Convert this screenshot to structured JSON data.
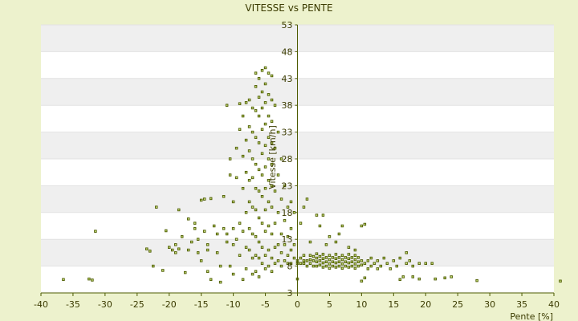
{
  "chart_data": {
    "type": "scatter",
    "title": "VITESSE vs PENTE",
    "xlabel": "Pente [%]",
    "ylabel": "Vitesse [km/h]",
    "xlim": [
      -40,
      40
    ],
    "ylim": [
      3,
      53
    ],
    "x_ticks": [
      "-40",
      "-35",
      "-30",
      "-25",
      "-20",
      "-15",
      "-10",
      "-5",
      "0",
      "5",
      "10",
      "15",
      "20",
      "25",
      "30",
      "35",
      "40"
    ],
    "y_ticks": [
      "3",
      "8",
      "13",
      "18",
      "23",
      "28",
      "33",
      "38",
      "43",
      "48",
      "53"
    ],
    "grid": true,
    "legend": "none",
    "colors": {
      "background": "#edf2cd",
      "plot_white": "#ffffff",
      "plot_band": "#efefef",
      "marker_fill": "#c8e07a",
      "marker_edge": "#4c5a00",
      "axis": "#4c5a00"
    },
    "points": [
      [
        -36.5,
        5.5
      ],
      [
        -32.5,
        5.6
      ],
      [
        -32,
        5.4
      ],
      [
        -31.5,
        14.5
      ],
      [
        -23.5,
        11.2
      ],
      [
        -23,
        10.8
      ],
      [
        -22.5,
        8.0
      ],
      [
        -22,
        19.0
      ],
      [
        -21,
        7.2
      ],
      [
        -20.5,
        14.6
      ],
      [
        -20,
        11.5
      ],
      [
        -19.5,
        11.0
      ],
      [
        -19,
        10.5
      ],
      [
        -19,
        12.0
      ],
      [
        -18.5,
        18.5
      ],
      [
        -18.5,
        11.2
      ],
      [
        -18,
        13.5
      ],
      [
        -17.5,
        6.8
      ],
      [
        -17,
        11.0
      ],
      [
        -17,
        16.8
      ],
      [
        -16.5,
        12.5
      ],
      [
        -16,
        15.0
      ],
      [
        -16,
        16.0
      ],
      [
        -15.5,
        10.5
      ],
      [
        -15.5,
        13.0
      ],
      [
        -15,
        20.3
      ],
      [
        -15,
        9.0
      ],
      [
        -14.5,
        20.5
      ],
      [
        -14.5,
        14.5
      ],
      [
        -14,
        12.0
      ],
      [
        -14,
        7.0
      ],
      [
        -14,
        11.0
      ],
      [
        -13.5,
        20.6
      ],
      [
        -13.5,
        5.5
      ],
      [
        -13,
        15.5
      ],
      [
        -12.5,
        14.0
      ],
      [
        -12.5,
        10.5
      ],
      [
        -12,
        5.0
      ],
      [
        -12,
        8.0
      ],
      [
        -11.5,
        15.0
      ],
      [
        -11.5,
        21.0
      ],
      [
        -11,
        12.5
      ],
      [
        -11,
        14.0
      ],
      [
        -11,
        38.0
      ],
      [
        -10.5,
        8.0
      ],
      [
        -10.5,
        25.0
      ],
      [
        -10.5,
        28.0
      ],
      [
        -10,
        15.0
      ],
      [
        -10,
        12.0
      ],
      [
        -10,
        20.0
      ],
      [
        -10,
        6.5
      ],
      [
        -9.5,
        30.0
      ],
      [
        -9.5,
        24.5
      ],
      [
        -9.5,
        13.0
      ],
      [
        -9,
        38.3
      ],
      [
        -9,
        33.5
      ],
      [
        -9,
        16.0
      ],
      [
        -9,
        10.0
      ],
      [
        -8.5,
        36.0
      ],
      [
        -8.5,
        28.5
      ],
      [
        -8.5,
        22.5
      ],
      [
        -8.5,
        14.5
      ],
      [
        -8.5,
        5.5
      ],
      [
        -8,
        38.5
      ],
      [
        -8,
        31.5
      ],
      [
        -8,
        25.5
      ],
      [
        -8,
        18.0
      ],
      [
        -8,
        11.5
      ],
      [
        -8,
        7.5
      ],
      [
        -7.5,
        39.0
      ],
      [
        -7.5,
        34.0
      ],
      [
        -7.5,
        29.5
      ],
      [
        -7.5,
        24.0
      ],
      [
        -7.5,
        20.0
      ],
      [
        -7.5,
        15.0
      ],
      [
        -7.5,
        11.0
      ],
      [
        -7,
        37.5
      ],
      [
        -7,
        33.0
      ],
      [
        -7,
        28.0
      ],
      [
        -7,
        24.5
      ],
      [
        -7,
        19.0
      ],
      [
        -7,
        14.0
      ],
      [
        -7,
        9.5
      ],
      [
        -7,
        6.5
      ],
      [
        -6.5,
        44.0
      ],
      [
        -6.5,
        41.5
      ],
      [
        -6.5,
        37.0
      ],
      [
        -6.5,
        32.0
      ],
      [
        -6.5,
        27.0
      ],
      [
        -6.5,
        22.5
      ],
      [
        -6.5,
        18.5
      ],
      [
        -6.5,
        13.5
      ],
      [
        -6.5,
        10.0
      ],
      [
        -6.5,
        7.0
      ],
      [
        -6,
        43.0
      ],
      [
        -6,
        39.5
      ],
      [
        -6,
        36.0
      ],
      [
        -6,
        31.0
      ],
      [
        -6,
        26.0
      ],
      [
        -6,
        22.0
      ],
      [
        -6,
        17.0
      ],
      [
        -6,
        12.5
      ],
      [
        -6,
        9.5
      ],
      [
        -6,
        6.0
      ],
      [
        -5.5,
        44.5
      ],
      [
        -5.5,
        40.5
      ],
      [
        -5.5,
        37.5
      ],
      [
        -5.5,
        33.5
      ],
      [
        -5.5,
        29.0
      ],
      [
        -5.5,
        25.0
      ],
      [
        -5.5,
        21.0
      ],
      [
        -5.5,
        16.0
      ],
      [
        -5.5,
        11.5
      ],
      [
        -5.5,
        8.5
      ],
      [
        -5,
        45.0
      ],
      [
        -5,
        42.0
      ],
      [
        -5,
        38.5
      ],
      [
        -5,
        34.5
      ],
      [
        -5,
        30.5
      ],
      [
        -5,
        26.5
      ],
      [
        -5,
        22.5
      ],
      [
        -5,
        18.5
      ],
      [
        -5,
        14.5
      ],
      [
        -5,
        10.0
      ],
      [
        -5,
        7.5
      ],
      [
        -4.5,
        44.0
      ],
      [
        -4.5,
        40.0
      ],
      [
        -4.5,
        36.0
      ],
      [
        -4.5,
        32.0
      ],
      [
        -4.5,
        28.0
      ],
      [
        -4.5,
        24.0
      ],
      [
        -4.5,
        20.0
      ],
      [
        -4.5,
        15.5
      ],
      [
        -4.5,
        11.0
      ],
      [
        -4.5,
        8.0
      ],
      [
        -4,
        43.5
      ],
      [
        -4,
        39.0
      ],
      [
        -4,
        35.0
      ],
      [
        -4,
        31.0
      ],
      [
        -4,
        27.0
      ],
      [
        -4,
        23.0
      ],
      [
        -4,
        19.0
      ],
      [
        -4,
        14.0
      ],
      [
        -4,
        9.5
      ],
      [
        -4,
        7.0
      ],
      [
        -3.5,
        38.0
      ],
      [
        -3.5,
        30.0
      ],
      [
        -3.5,
        22.0
      ],
      [
        -3.5,
        16.0
      ],
      [
        -3.5,
        11.5
      ],
      [
        -3.5,
        8.5
      ],
      [
        -3,
        33.0
      ],
      [
        -3,
        25.0
      ],
      [
        -3,
        18.0
      ],
      [
        -3,
        12.0
      ],
      [
        -3,
        9.0
      ],
      [
        -2.5,
        28.0
      ],
      [
        -2.5,
        20.5
      ],
      [
        -2.5,
        14.0
      ],
      [
        -2.5,
        10.5
      ],
      [
        -2.5,
        8.0
      ],
      [
        -2,
        23.0
      ],
      [
        -2,
        16.5
      ],
      [
        -2,
        12.0
      ],
      [
        -2,
        9.0
      ],
      [
        -1.5,
        19.0
      ],
      [
        -1.5,
        13.5
      ],
      [
        -1.5,
        10.0
      ],
      [
        -1.5,
        8.5
      ],
      [
        -1,
        20.0
      ],
      [
        -1,
        15.0
      ],
      [
        -1,
        11.0
      ],
      [
        -1,
        8.5
      ],
      [
        -0.5,
        18.0
      ],
      [
        -0.5,
        12.0
      ],
      [
        -0.5,
        9.5
      ],
      [
        0,
        5.6
      ],
      [
        0,
        8.5
      ],
      [
        0,
        9.0
      ],
      [
        0.5,
        8.5
      ],
      [
        0.5,
        9.5
      ],
      [
        0.5,
        16.0
      ],
      [
        1,
        8.5
      ],
      [
        1,
        9.0
      ],
      [
        1,
        10.0
      ],
      [
        1,
        19.0
      ],
      [
        1.5,
        8.0
      ],
      [
        1.5,
        9.0
      ],
      [
        1.5,
        20.5
      ],
      [
        2,
        8.5
      ],
      [
        2,
        9.2
      ],
      [
        2,
        10.0
      ],
      [
        2,
        12.5
      ],
      [
        2.5,
        8.0
      ],
      [
        2.5,
        9.0
      ],
      [
        2.5,
        9.8
      ],
      [
        3,
        8.0
      ],
      [
        3,
        8.8
      ],
      [
        3,
        9.5
      ],
      [
        3,
        10.3
      ],
      [
        3,
        17.5
      ],
      [
        3.5,
        8.2
      ],
      [
        3.5,
        9.0
      ],
      [
        3.5,
        9.8
      ],
      [
        3.5,
        15.5
      ],
      [
        4,
        7.8
      ],
      [
        4,
        8.6
      ],
      [
        4,
        9.4
      ],
      [
        4,
        10.2
      ],
      [
        4,
        17.5
      ],
      [
        4.5,
        8.0
      ],
      [
        4.5,
        8.8
      ],
      [
        4.5,
        9.6
      ],
      [
        4.5,
        12.0
      ],
      [
        5,
        7.6
      ],
      [
        5,
        8.4
      ],
      [
        5,
        9.2
      ],
      [
        5,
        10.0
      ],
      [
        5,
        13.5
      ],
      [
        5.5,
        8.0
      ],
      [
        5.5,
        8.8
      ],
      [
        5.5,
        9.6
      ],
      [
        6,
        7.8
      ],
      [
        6,
        8.6
      ],
      [
        6,
        9.4
      ],
      [
        6,
        10.2
      ],
      [
        6,
        12.5
      ],
      [
        6.5,
        8.0
      ],
      [
        6.5,
        8.8
      ],
      [
        6.5,
        9.6
      ],
      [
        6.5,
        14.0
      ],
      [
        7,
        7.6
      ],
      [
        7,
        8.4
      ],
      [
        7,
        9.2
      ],
      [
        7,
        10.0
      ],
      [
        7,
        15.5
      ],
      [
        7.5,
        8.0
      ],
      [
        7.5,
        8.8
      ],
      [
        7.5,
        9.6
      ],
      [
        8,
        7.8
      ],
      [
        8,
        8.6
      ],
      [
        8,
        9.4
      ],
      [
        8,
        10.2
      ],
      [
        8,
        11.5
      ],
      [
        8.5,
        8.0
      ],
      [
        8.5,
        8.8
      ],
      [
        8.5,
        9.6
      ],
      [
        9,
        7.6
      ],
      [
        9,
        8.4
      ],
      [
        9,
        9.2
      ],
      [
        9,
        10.0
      ],
      [
        9,
        11.0
      ],
      [
        9.5,
        8.0
      ],
      [
        9.5,
        8.8
      ],
      [
        9.5,
        9.6
      ],
      [
        10,
        5.2
      ],
      [
        10,
        8.2
      ],
      [
        10,
        9.0
      ],
      [
        10,
        15.5
      ],
      [
        10.5,
        5.8
      ],
      [
        10.5,
        8.5
      ],
      [
        10.5,
        15.8
      ],
      [
        11,
        9.0
      ],
      [
        11,
        7.5
      ],
      [
        11.5,
        8.0
      ],
      [
        11.5,
        9.5
      ],
      [
        12,
        8.5
      ],
      [
        12.5,
        7.5
      ],
      [
        12.5,
        9.0
      ],
      [
        13,
        8.0
      ],
      [
        13.5,
        9.5
      ],
      [
        14,
        8.5
      ],
      [
        14.5,
        7.5
      ],
      [
        15,
        9.0
      ],
      [
        15.5,
        8.0
      ],
      [
        16,
        5.5
      ],
      [
        16,
        9.5
      ],
      [
        16.5,
        6.0
      ],
      [
        17,
        8.5
      ],
      [
        17,
        10.5
      ],
      [
        17.5,
        9.0
      ],
      [
        18,
        6.0
      ],
      [
        18,
        8.0
      ],
      [
        19,
        5.6
      ],
      [
        19,
        8.5
      ],
      [
        20,
        8.5
      ],
      [
        21,
        8.5
      ],
      [
        21.5,
        5.6
      ],
      [
        23,
        5.8
      ],
      [
        24,
        6.0
      ],
      [
        28,
        5.3
      ],
      [
        41,
        5.2
      ]
    ]
  }
}
